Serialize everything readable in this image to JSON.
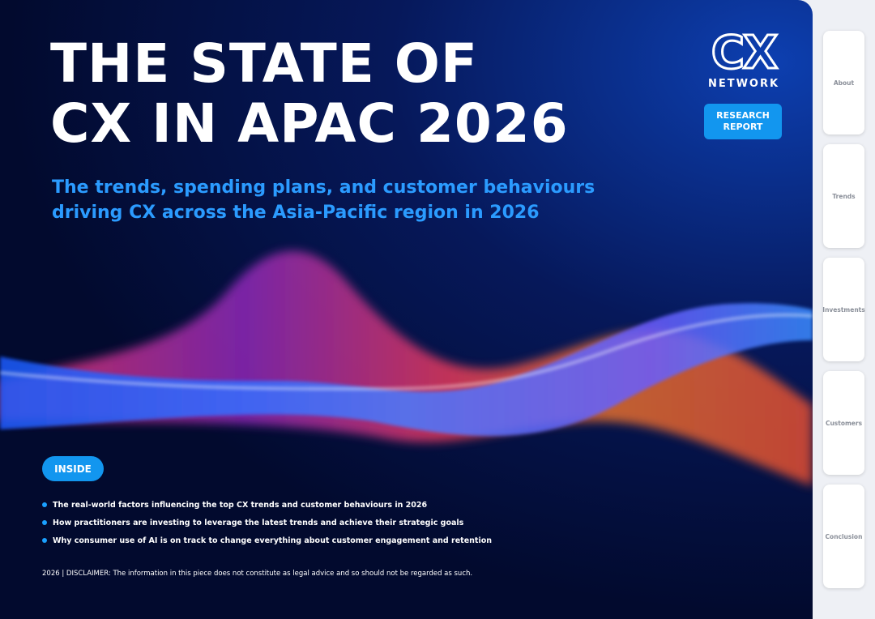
{
  "cover": {
    "title": [
      "THE STATE OF",
      "CX IN APAC 2026"
    ],
    "subtitle": [
      "The trends, spending plans, and customer behaviours",
      "driving CX across the Asia-Pacific region in 2026"
    ],
    "logo": {
      "mark": "CX",
      "word": "NETWORK"
    },
    "badge": [
      "RESEARCH",
      "REPORT"
    ],
    "inside_label": "INSIDE",
    "bullets": [
      "The real-world factors influencing the top CX trends and customer behaviours in 2026",
      "How practitioners are investing to leverage the latest trends and achieve their strategic goals",
      "Why consumer use of AI is on track to change everything about customer engagement and retention"
    ],
    "footer": "2026  |  DISCLAIMER: The information in this piece does not constitute as legal advice and so should not be regarded as such."
  },
  "tabs": [
    "About",
    "Trends",
    "Investments",
    "Customers",
    "Conclusion"
  ]
}
